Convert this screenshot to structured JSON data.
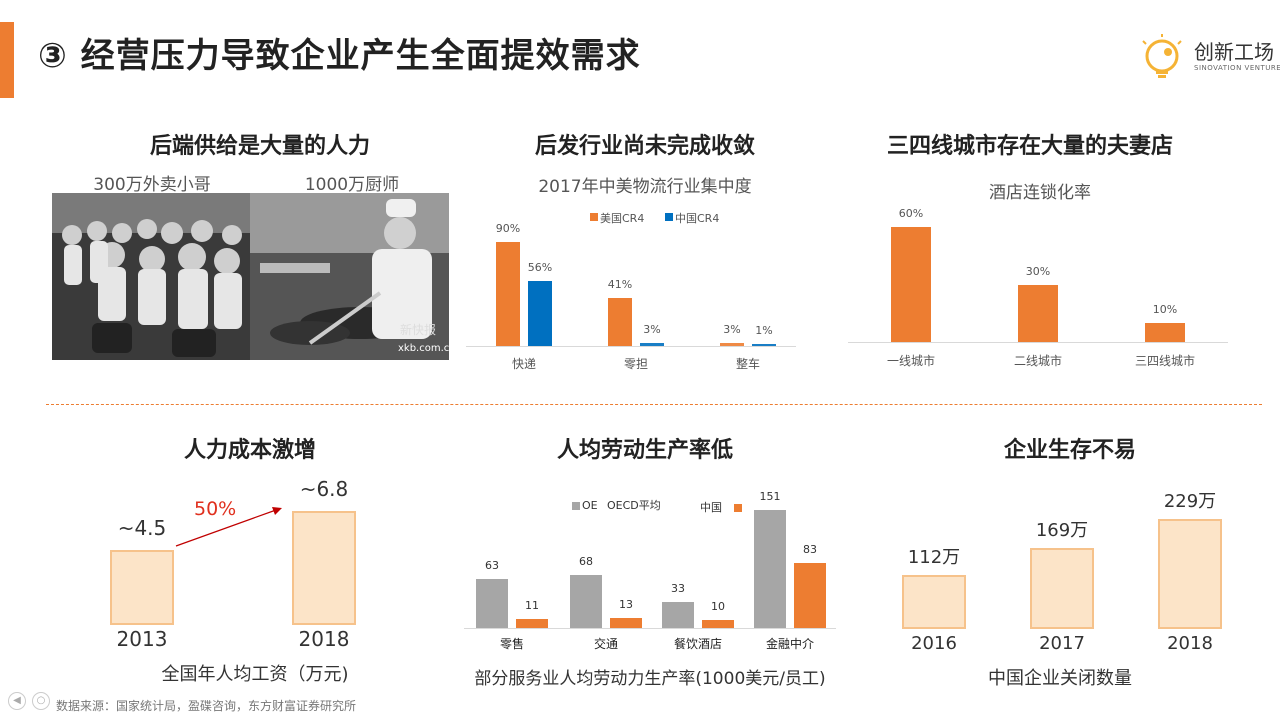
{
  "header": {
    "title": "③ 经营压力导致企业产生全面提效需求"
  },
  "logo": {
    "name": "创新工场",
    "subtitle": "SINOVATION VENTURES"
  },
  "panel1": {
    "title": "后端供给是大量的人力",
    "caption_left": "300万外卖小哥",
    "caption_right": "1000万厨师",
    "watermark_a": "新快报",
    "watermark_b": "xkb.com.cn"
  },
  "panel2": {
    "title": "后发行业尚未完成收敛",
    "subtitle": "2017年中美物流行业集中度",
    "legend_us": "美国CR4",
    "legend_cn": "中国CR4"
  },
  "panel3": {
    "title": "三四线城市存在大量的夫妻店",
    "subtitle": "酒店连锁化率"
  },
  "panel4": {
    "title": "人力成本激增",
    "growth_label": "50%",
    "caption": "全国年人均工资（万元)"
  },
  "panel5": {
    "title": "人均劳动生产率低",
    "legend_oecd_prefix": "OE",
    "legend_oecd": "OECD平均",
    "legend_cn": "中国",
    "caption": "部分服务业人均劳动力生产率(1000美元/员工)"
  },
  "panel6": {
    "title": "企业生存不易",
    "caption": "中国企业关闭数量"
  },
  "footer": {
    "source": "数据来源：国家统计局，盈碟咨询，东方财富证券研究所"
  },
  "colors": {
    "accent": "#ED7D31",
    "blue": "#0070C0",
    "gray": "#A6A6A6",
    "pale": "#FCE4C8"
  },
  "chart_data": [
    {
      "type": "bar",
      "title": "2017年中美物流行业集中度",
      "categories": [
        "快递",
        "零担",
        "整车"
      ],
      "series": [
        {
          "name": "美国CR4",
          "values": [
            90,
            41,
            3
          ],
          "labels": [
            "90%",
            "41%",
            "3%"
          ],
          "color": "#ED7D31"
        },
        {
          "name": "中国CR4",
          "values": [
            56,
            3,
            1
          ],
          "labels": [
            "56%",
            "3%",
            "1%"
          ],
          "color": "#0070C0"
        }
      ],
      "ylim": [
        0,
        100
      ]
    },
    {
      "type": "bar",
      "title": "酒店连锁化率",
      "categories": [
        "一线城市",
        "二线城市",
        "三四线城市"
      ],
      "values": [
        60,
        30,
        10
      ],
      "labels": [
        "60%",
        "30%",
        "10%"
      ],
      "ylim": [
        0,
        70
      ]
    },
    {
      "type": "bar",
      "title": "全国年人均工资（万元)",
      "categories": [
        "2013",
        "2018"
      ],
      "values": [
        4.5,
        6.8
      ],
      "labels": [
        "~4.5",
        "~6.8"
      ],
      "ylim": [
        0,
        8
      ]
    },
    {
      "type": "bar",
      "title": "部分服务业人均劳动力生产率(1000美元/员工)",
      "categories": [
        "零售",
        "交通",
        "餐饮酒店",
        "金融中介"
      ],
      "series": [
        {
          "name": "OECD平均",
          "values": [
            63,
            68,
            33,
            151
          ],
          "color": "#A6A6A6"
        },
        {
          "name": "中国",
          "values": [
            11,
            13,
            10,
            83
          ],
          "color": "#ED7D31"
        }
      ],
      "ylim": [
        0,
        160
      ]
    },
    {
      "type": "bar",
      "title": "中国企业关闭数量",
      "categories": [
        "2016",
        "2017",
        "2018"
      ],
      "values": [
        112,
        169,
        229
      ],
      "labels": [
        "112万",
        "169万",
        "229万"
      ],
      "ylim": [
        0,
        250
      ]
    }
  ]
}
